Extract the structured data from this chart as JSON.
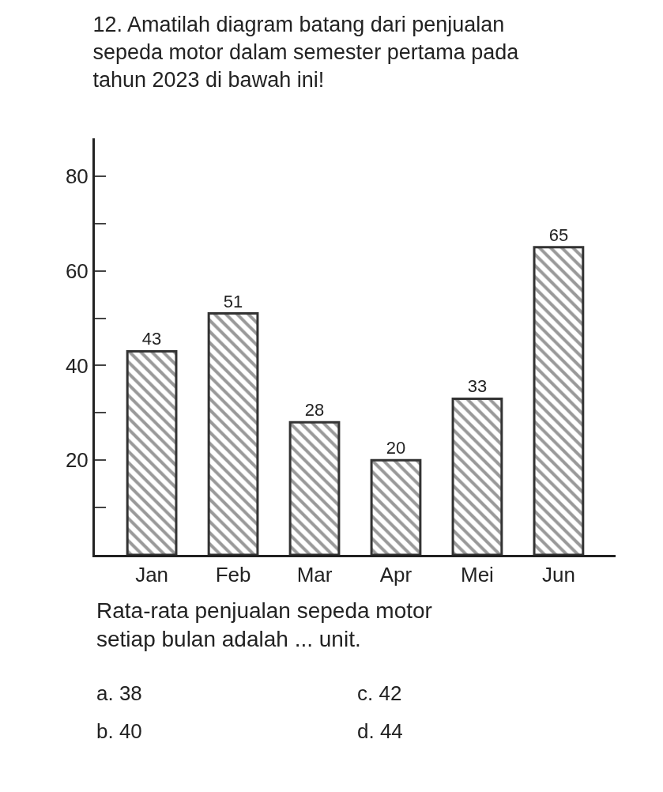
{
  "chart_data": {
    "type": "bar",
    "title": "12. Amatilah diagram batang dari penjualan sepeda motor dalam semester pertama pada tahun 2023 di bawah ini!",
    "categories": [
      "Jan",
      "Feb",
      "Mar",
      "Apr",
      "Mei",
      "Jun"
    ],
    "values": [
      43,
      51,
      28,
      20,
      33,
      65
    ],
    "color": "#333333",
    "data_labels": true,
    "ylim": [
      0,
      88
    ],
    "yticks": [
      {
        "value": 10,
        "label": null
      },
      20,
      {
        "value": 30,
        "label": null
      },
      40,
      {
        "value": 50,
        "label": null
      },
      60,
      {
        "value": 70,
        "label": null
      },
      80
    ],
    "annotations": [
      "Rata-rata penjualan sepeda motor setiap bulan adalah ... unit.",
      "a. 38",
      "b. 40",
      "c. 42",
      "d. 44"
    ]
  }
}
